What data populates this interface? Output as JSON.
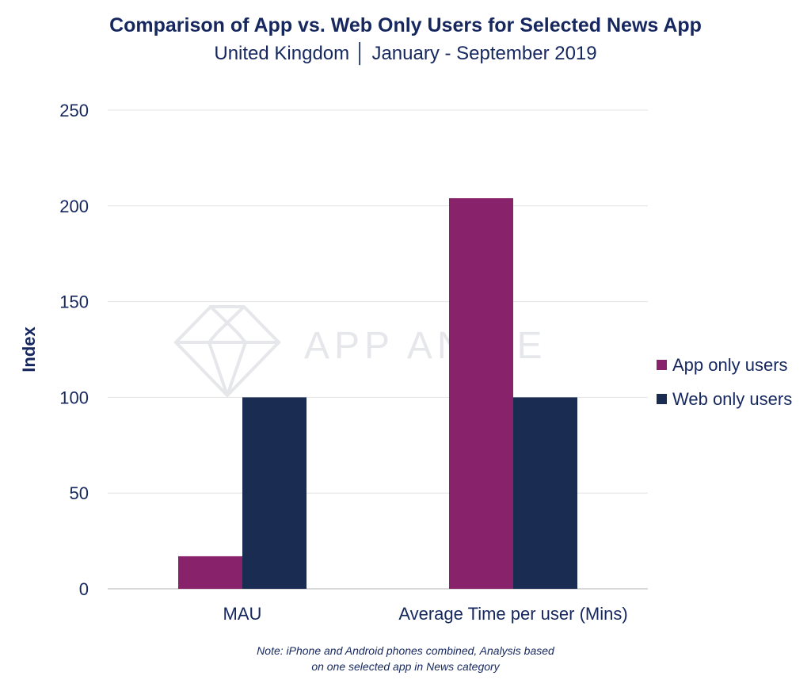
{
  "chart_data": {
    "type": "bar",
    "title": "Comparison of App vs. Web Only Users for Selected News App",
    "subtitle": "United Kingdom │ January - September 2019",
    "xlabel": "",
    "ylabel": "Index",
    "ylim": [
      0,
      250
    ],
    "yticks": [
      0,
      50,
      100,
      150,
      200,
      250
    ],
    "ytick_labels": [
      "0",
      "50",
      "100",
      "150",
      "200",
      "250"
    ],
    "grid": true,
    "categories": [
      "MAU",
      "Average Time per user (Mins)"
    ],
    "series": [
      {
        "name": "App only users",
        "color": "#88226a",
        "values": [
          17,
          204
        ]
      },
      {
        "name": "Web only users",
        "color": "#1b2c53",
        "values": [
          100,
          100
        ]
      }
    ],
    "legend_position": "right",
    "watermark": "APP ANNIE",
    "note_lines": [
      "Note: iPhone and Android phones combined, Analysis based",
      "on one selected app in News category"
    ]
  }
}
